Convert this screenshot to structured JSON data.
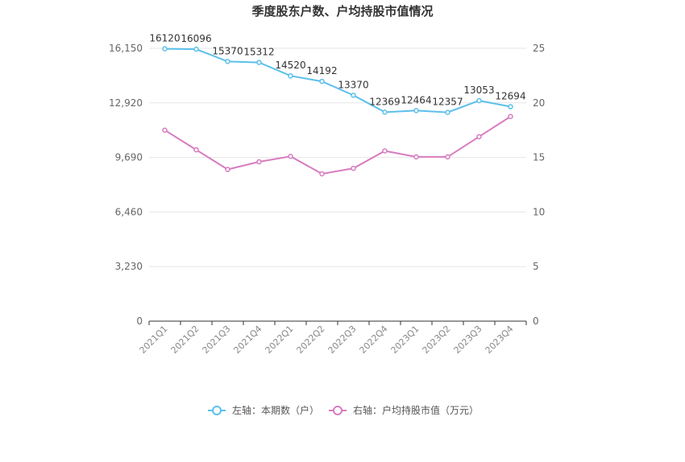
{
  "chart_data": {
    "type": "line",
    "title": "季度股东户数、户均持股市值情况",
    "categories": [
      "2021Q1",
      "2021Q2",
      "2021Q3",
      "2021Q4",
      "2022Q1",
      "2022Q2",
      "2022Q3",
      "2022Q4",
      "2023Q1",
      "2023Q2",
      "2023Q3",
      "2023Q4"
    ],
    "left_axis": {
      "ylim": [
        0,
        16150
      ],
      "ticks": [
        0,
        3230,
        6460,
        9690,
        12920,
        16150
      ],
      "tick_labels": [
        "0",
        "3,230",
        "6,460",
        "9,690",
        "12,920",
        "16,150"
      ]
    },
    "right_axis": {
      "ylim": [
        0,
        25
      ],
      "ticks": [
        0,
        5,
        10,
        15,
        20,
        25
      ],
      "tick_labels": [
        "0",
        "5",
        "10",
        "15",
        "20",
        "25"
      ]
    },
    "series": [
      {
        "name": "左轴：本期数（户）",
        "axis": "left",
        "color": "#5bc0eb",
        "values": [
          16120,
          16096,
          15370,
          15312,
          14520,
          14192,
          13370,
          12369,
          12464,
          12357,
          13053,
          12694
        ],
        "labels": [
          "16120",
          "16096",
          "15370",
          "15312",
          "14520",
          "14192",
          "13370",
          "12369",
          "12464",
          "12357",
          "13053",
          "12694"
        ]
      },
      {
        "name": "右轴：户均持股市值（万元）",
        "axis": "right",
        "color": "#d87cbf",
        "values": [
          17.5,
          15.7,
          13.9,
          14.6,
          15.1,
          13.5,
          14.0,
          15.6,
          15.05,
          15.05,
          16.9,
          18.75
        ]
      }
    ],
    "grid": true,
    "legend": "bottom-center"
  }
}
